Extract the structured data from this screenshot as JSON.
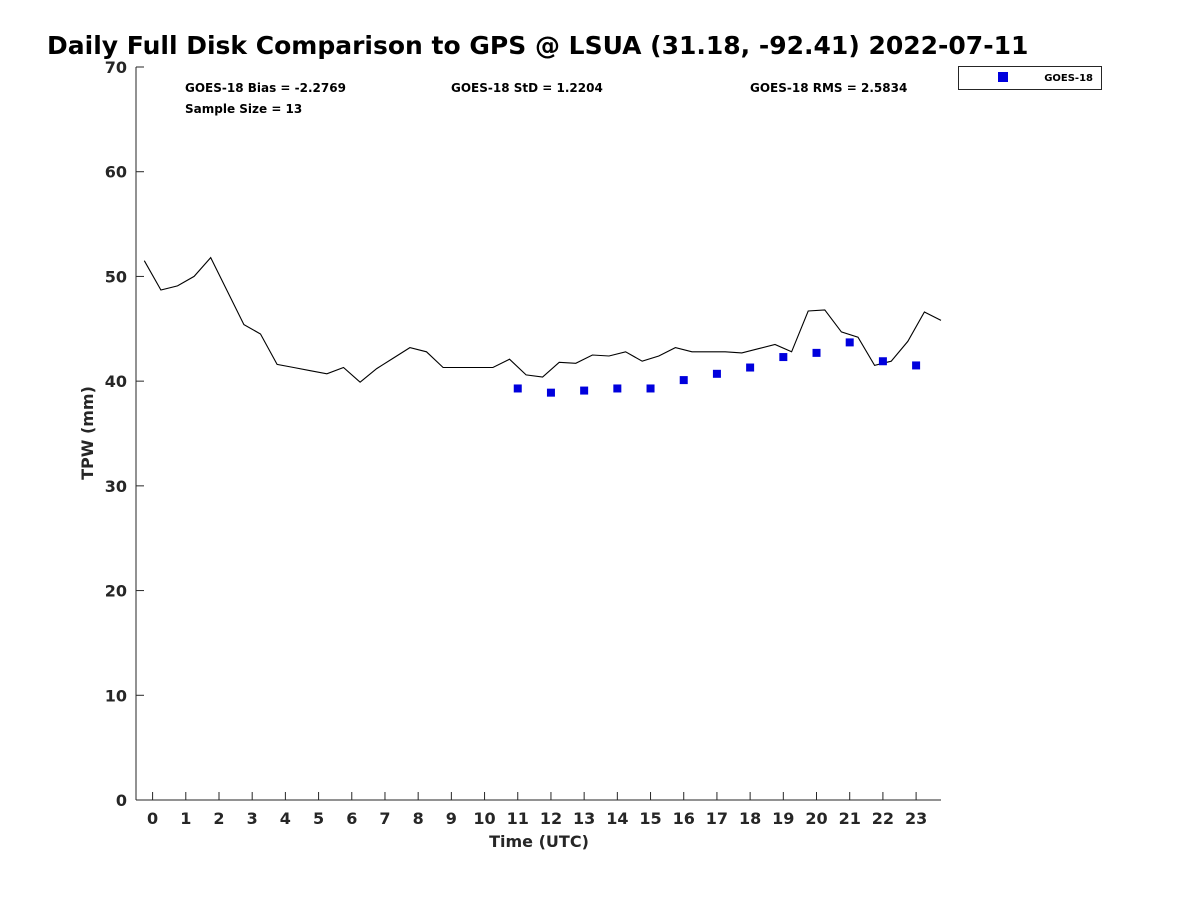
{
  "chart_data": {
    "type": "line+scatter",
    "title": "Daily Full Disk Comparison to GPS @ LSUA (31.18, -92.41) 2022-07-11",
    "xlabel": "Time (UTC)",
    "ylabel": "TPW (mm)",
    "xlim": [
      -0.5,
      23.75
    ],
    "ylim": [
      0,
      70
    ],
    "x_ticks": [
      0,
      1,
      2,
      3,
      4,
      5,
      6,
      7,
      8,
      9,
      10,
      11,
      12,
      13,
      14,
      15,
      16,
      17,
      18,
      19,
      20,
      21,
      22,
      23
    ],
    "y_ticks": [
      0,
      10,
      20,
      30,
      40,
      50,
      60,
      70
    ],
    "grid": false,
    "stats": {
      "bias": "GOES-18 Bias = -2.2769",
      "std": "GOES-18 StD = 1.2204",
      "rms": "GOES-18 RMS = 2.5834",
      "sample_size": "Sample Size = 13"
    },
    "legend": {
      "position": "outside-top-right",
      "entries": [
        "GOES-18"
      ]
    },
    "series": [
      {
        "name": "",
        "kind": "line",
        "color": "#000000",
        "x": [
          -0.25,
          0.25,
          0.75,
          1.25,
          1.75,
          2.25,
          2.75,
          3.25,
          3.75,
          4.25,
          4.75,
          5.25,
          5.75,
          6.25,
          6.75,
          7.25,
          7.75,
          8.25,
          8.75,
          9.25,
          9.75,
          10.25,
          10.75,
          11.25,
          11.75,
          12.25,
          12.75,
          13.25,
          13.75,
          14.25,
          14.75,
          15.25,
          15.75,
          16.25,
          16.75,
          17.25,
          17.75,
          18.25,
          18.75,
          19.25,
          19.75,
          20.25,
          20.75,
          21.25,
          21.75,
          22.25,
          22.75,
          23.25,
          23.75
        ],
        "y": [
          51.5,
          48.7,
          49.1,
          50.0,
          51.8,
          48.6,
          45.4,
          44.5,
          41.6,
          41.3,
          41.0,
          40.7,
          41.3,
          39.9,
          41.2,
          42.2,
          43.2,
          42.8,
          41.3,
          41.3,
          41.3,
          41.3,
          42.1,
          40.6,
          40.4,
          41.8,
          41.7,
          42.5,
          42.4,
          42.8,
          41.9,
          42.4,
          43.2,
          42.8,
          42.8,
          42.8,
          42.7,
          43.1,
          43.5,
          42.8,
          46.7,
          46.8,
          44.7,
          44.2,
          41.5,
          41.9,
          43.8,
          46.6,
          45.8
        ]
      },
      {
        "name": "GOES-18",
        "kind": "scatter",
        "marker": "square",
        "color": "#0000dd",
        "x": [
          11,
          12,
          13,
          14,
          15,
          16,
          17,
          18,
          19,
          20,
          21,
          22,
          23
        ],
        "y": [
          39.3,
          38.9,
          39.1,
          39.3,
          39.3,
          40.1,
          40.7,
          41.3,
          42.3,
          42.7,
          43.7,
          41.9,
          41.5
        ]
      }
    ]
  }
}
